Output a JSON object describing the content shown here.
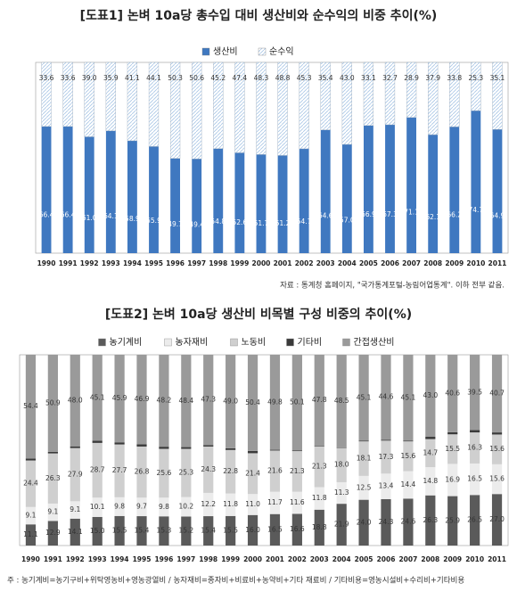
{
  "chart_data": [
    {
      "type": "stacked-bar",
      "title": "[도표1] 논벼 10a당 총수입 대비 생산비와 순수익의 비중 추이(%)",
      "note": "자료 : 통계청 홈페이지, \"국가통계포털-농림어업통계\". 이하 전부 같음.",
      "categories": [
        "1990",
        "1991",
        "1992",
        "1993",
        "1994",
        "1995",
        "1996",
        "1997",
        "1998",
        "1999",
        "2000",
        "2001",
        "2002",
        "2003",
        "2004",
        "2005",
        "2006",
        "2007",
        "2008",
        "2009",
        "2010",
        "2011"
      ],
      "ylim": [
        0,
        100
      ],
      "series": [
        {
          "name": "생산비",
          "color": "#3f78c0",
          "values": [
            66.4,
            66.4,
            61.0,
            64.1,
            58.9,
            55.9,
            49.7,
            49.4,
            54.8,
            52.6,
            51.7,
            51.2,
            54.7,
            64.6,
            57.0,
            66.9,
            67.3,
            71.1,
            62.1,
            66.2,
            74.7,
            64.9
          ],
          "value_labels": [
            "66.4",
            "66.4",
            "61.0",
            "64.1",
            "58.9",
            "55.9",
            "49.7",
            "49.4",
            "54.8",
            "52.6",
            "51.7",
            "51.2",
            "54.7",
            "64.6",
            "57.0",
            "66.9",
            "67.3",
            "71.1",
            "62.1",
            "66.2",
            "74.7",
            "64.9"
          ]
        },
        {
          "name": "순수익",
          "color": "#a9c6e6",
          "values": [
            33.6,
            33.6,
            39.0,
            35.9,
            41.1,
            44.1,
            50.3,
            50.6,
            45.2,
            47.4,
            48.3,
            48.8,
            45.3,
            35.4,
            43.0,
            33.1,
            32.7,
            28.9,
            37.9,
            33.8,
            25.3,
            35.1
          ],
          "value_labels": [
            "33.6",
            "33.6",
            "39.0",
            "35.9",
            "41.1",
            "44.1",
            "50.3",
            "50.6",
            "45.2",
            "47.4",
            "48.3",
            "48.8",
            "45.3",
            "35.4",
            "43.0",
            "33.1",
            "32.7",
            "28.9",
            "37.9",
            "33.8",
            "25.3",
            "35.1"
          ]
        }
      ]
    },
    {
      "type": "stacked-bar",
      "title": "[도표2] 논벼 10a당 생산비 비목별 구성 비중의 추이(%)",
      "note": "주 : 농기계비=농기구비+위탁영농비+영농광열비 / 농자재비=종자비+비료비+농약비+기타 재료비 / 기타비용=영농시설비+수리비+기타비용",
      "categories": [
        "1990",
        "1991",
        "1992",
        "1993",
        "1994",
        "1995",
        "1996",
        "1997",
        "1998",
        "1999",
        "2000",
        "2001",
        "2002",
        "2003",
        "2004",
        "2005",
        "2006",
        "2007",
        "2008",
        "2009",
        "2010",
        "2011"
      ],
      "ylim": [
        0,
        100
      ],
      "series": [
        {
          "name": "농기계비",
          "color": "#5a5a5a",
          "values": [
            11.1,
            12.9,
            14.1,
            15.0,
            15.5,
            15.4,
            15.3,
            15.2,
            15.4,
            15.5,
            16.0,
            16.5,
            16.6,
            18.8,
            21.9,
            24.0,
            24.3,
            24.6,
            26.3,
            25.9,
            26.5,
            27.0
          ],
          "value_labels": [
            "11.1",
            "12.9",
            "14.1",
            "15.0",
            "15.5",
            "15.4",
            "15.3",
            "15.2",
            "15.4",
            "15.5",
            "16.0",
            "16.5",
            "16.6",
            "18.8",
            "21.9",
            "24.0",
            "24.3",
            "24.6",
            "26.3",
            "25.9",
            "26.5",
            "27.0"
          ]
        },
        {
          "name": "농자재비",
          "color": "#ececec",
          "values": [
            9.1,
            9.1,
            9.1,
            10.1,
            9.8,
            9.7,
            9.8,
            10.2,
            12.2,
            11.8,
            11.0,
            11.7,
            11.6,
            11.8,
            11.3,
            12.5,
            13.4,
            14.4,
            14.8,
            16.9,
            16.5,
            15.6
          ],
          "value_labels": [
            "9.1",
            "9.1",
            "9.1",
            "10.1",
            "9.8",
            "9.7",
            "9.8",
            "10.2",
            "12.2",
            "11.8",
            "11.0",
            "11.7",
            "11.6",
            "11.8",
            "11.3",
            "12.5",
            "13.4",
            "14.4",
            "14.8",
            "16.9",
            "16.5",
            "15.6"
          ]
        },
        {
          "name": "노동비",
          "color": "#cfcfcf",
          "values": [
            24.4,
            26.3,
            27.9,
            28.7,
            27.7,
            26.8,
            25.6,
            25.3,
            24.3,
            22.8,
            21.4,
            21.6,
            21.3,
            21.3,
            18.0,
            18.1,
            17.3,
            15.6,
            14.7,
            15.5,
            16.3,
            15.6
          ],
          "value_labels": [
            "24.4",
            "26.3",
            "27.9",
            "28.7",
            "27.7",
            "26.8",
            "25.6",
            "25.3",
            "24.3",
            "22.8",
            "21.4",
            "21.6",
            "21.3",
            "21.3",
            "18.0",
            "18.1",
            "17.3",
            "15.6",
            "14.7",
            "15.5",
            "16.3",
            "15.6"
          ]
        },
        {
          "name": "기타비",
          "color": "#3a3a3a",
          "values": [
            1.0,
            0.8,
            0.9,
            1.1,
            1.1,
            1.2,
            1.1,
            0.9,
            0.8,
            0.9,
            1.2,
            0.4,
            0.4,
            0.3,
            0.3,
            0.3,
            0.4,
            0.3,
            1.2,
            1.1,
            1.2,
            1.1
          ]
        },
        {
          "name": "간접생산비",
          "color": "#9a9a9a",
          "values": [
            54.4,
            50.9,
            48.0,
            45.1,
            45.9,
            46.9,
            48.2,
            48.4,
            47.3,
            49.0,
            50.4,
            49.8,
            50.1,
            47.8,
            48.5,
            45.1,
            44.6,
            45.1,
            43.0,
            40.6,
            39.5,
            40.7
          ],
          "value_labels": [
            "54.4",
            "50.9",
            "48.0",
            "45.1",
            "45.9",
            "46.9",
            "48.2",
            "48.4",
            "47.3",
            "49.0",
            "50.4",
            "49.8",
            "50.1",
            "47.8",
            "48.5",
            "45.1",
            "44.6",
            "45.1",
            "43.0",
            "40.6",
            "39.5",
            "40.7"
          ]
        }
      ]
    }
  ]
}
